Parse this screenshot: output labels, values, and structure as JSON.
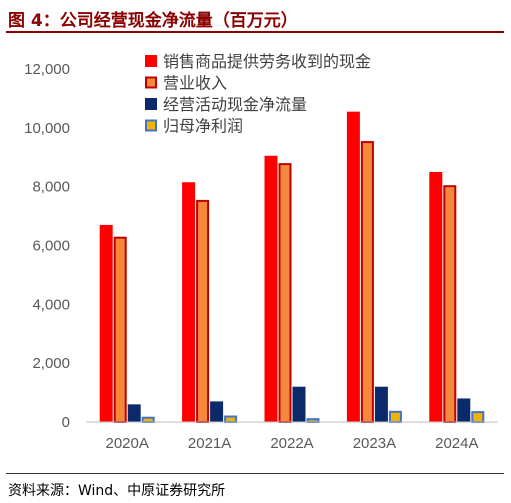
{
  "header": {
    "title": "图 4：公司经营现金净流量（百万元）"
  },
  "footer": {
    "source": "资料来源：Wind、中原证券研究所"
  },
  "chart_data": {
    "type": "bar",
    "title": "",
    "xlabel": "",
    "ylabel": "",
    "categories": [
      "2020A",
      "2021A",
      "2022A",
      "2023A",
      "2024A"
    ],
    "ylim": [
      0,
      12000
    ],
    "yticks": [
      0,
      2000,
      4000,
      6000,
      8000,
      10000,
      12000
    ],
    "ytick_labels": [
      "0",
      "2,000",
      "4,000",
      "6,000",
      "8,000",
      "10,000",
      "12,000"
    ],
    "grid": false,
    "legend_position": "top-right",
    "series": [
      {
        "name": "销售商品提供劳务收到的现金",
        "color": "#ff0000",
        "stroke": "#ff0000",
        "values": [
          6700,
          8150,
          9050,
          10550,
          8500
        ]
      },
      {
        "name": "营业收入",
        "color": "#f4883b",
        "stroke": "#c00000",
        "values": [
          6300,
          7550,
          8800,
          9550,
          8050
        ]
      },
      {
        "name": "经营活动现金净流量",
        "color": "#0b2a6b",
        "stroke": "#0b2a6b",
        "values": [
          600,
          700,
          1200,
          1200,
          800
        ]
      },
      {
        "name": "归母净利润",
        "color": "#f0b400",
        "stroke": "#4472c4",
        "values": [
          180,
          220,
          130,
          380,
          370
        ]
      }
    ]
  }
}
